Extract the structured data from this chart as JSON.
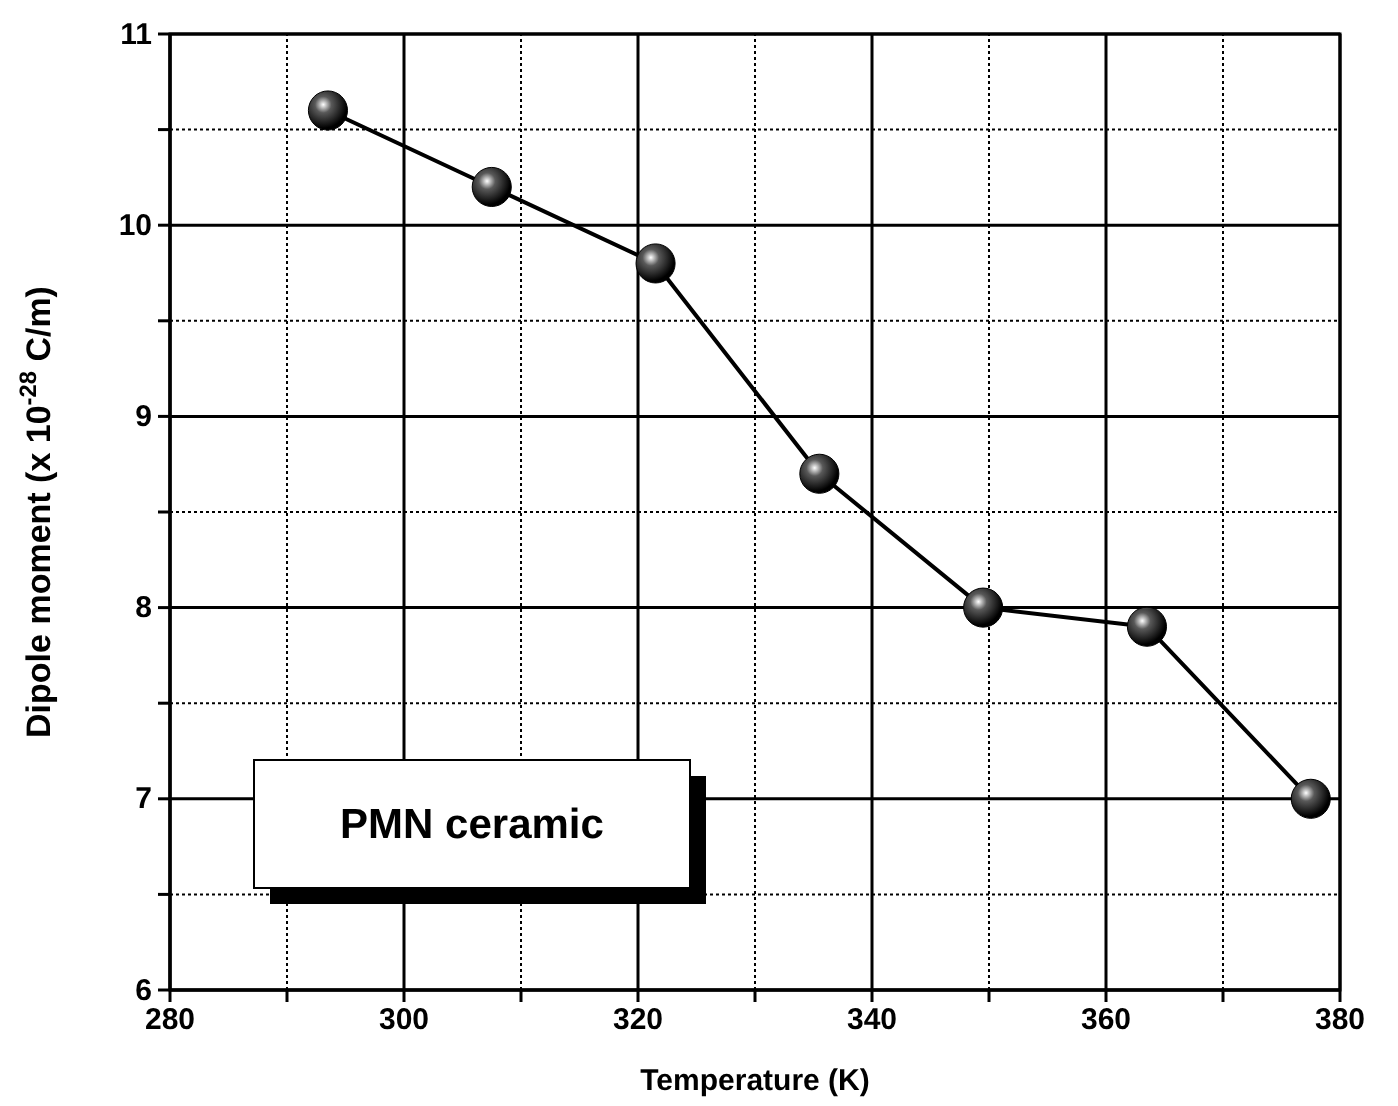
{
  "chart_data": {
    "type": "line",
    "xlabel": "Temperature (K)",
    "ylabel": "Dipole moment (x 10$^{-28}$ C/m)",
    "x": [
      293.5,
      307.5,
      321.5,
      335.5,
      349.5,
      363.5,
      377.5
    ],
    "series": [
      {
        "color": "#000000",
        "values": [
          10.6,
          10.2,
          9.8,
          8.7,
          8.0,
          7.9,
          7.0
        ]
      }
    ],
    "xlim": [
      280,
      380
    ],
    "xticks": [
      280,
      {
        "value": 290,
        "label": null
      },
      300,
      {
        "value": 310,
        "label": null
      },
      320,
      {
        "value": 330,
        "label": null
      },
      340,
      {
        "value": 350,
        "label": null
      },
      360,
      {
        "value": 370,
        "label": null
      },
      380
    ],
    "ylim": [
      6,
      11
    ],
    "yticks": [
      6,
      {
        "value": 6.5,
        "label": null
      },
      7,
      {
        "value": 7.5,
        "label": null
      },
      8,
      {
        "value": 8.5,
        "label": null
      },
      9,
      {
        "value": 9.5,
        "label": null
      },
      10,
      {
        "value": 10.5,
        "label": null
      },
      11
    ],
    "grid": true,
    "marker": "circle",
    "line_style": "solid",
    "annotations": [
      "PMN ceramic"
    ]
  }
}
